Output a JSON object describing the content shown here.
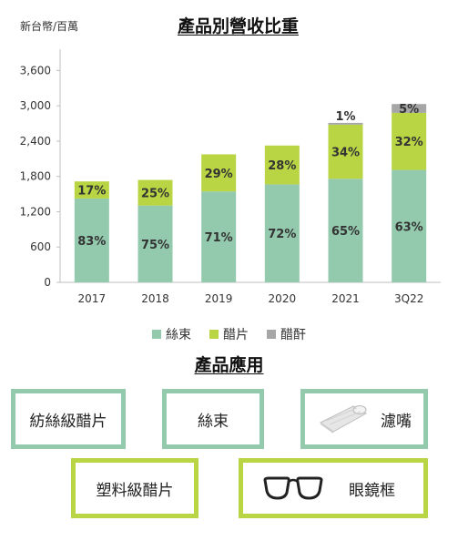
{
  "unit_label": "新台幣/百萬",
  "chart_title": "產品別營收比重",
  "chart_data": {
    "type": "bar",
    "stacked": true,
    "title": "產品別營收比重",
    "ylabel": "新台幣/百萬",
    "ylim": [
      0,
      3900
    ],
    "yticks": [
      "0",
      "600",
      "1,200",
      "1,800",
      "2,400",
      "3,000",
      "3,600"
    ],
    "ytick_values": [
      0,
      600,
      1200,
      1800,
      2400,
      3000,
      3600
    ],
    "categories": [
      "2017",
      "2018",
      "2019",
      "2020",
      "2021",
      "3Q22"
    ],
    "series": [
      {
        "name": "絲束",
        "color": "#93c9ad",
        "values": [
          1425,
          1305,
          1545,
          1665,
          1760,
          1910
        ],
        "labels": [
          "83%",
          "75%",
          "71%",
          "72%",
          "65%",
          "63%"
        ]
      },
      {
        "name": "醋片",
        "color": "#b9d544",
        "values": [
          290,
          435,
          630,
          660,
          920,
          970
        ],
        "labels": [
          "17%",
          "25%",
          "29%",
          "28%",
          "34%",
          "32%"
        ]
      },
      {
        "name": "醋酐",
        "color": "#a6a6a6",
        "values": [
          0,
          0,
          0,
          0,
          30,
          150
        ],
        "labels": [
          "",
          "",
          "",
          "",
          "1%",
          "5%"
        ]
      }
    ],
    "grid": false,
    "legend": "bottom"
  },
  "legend": [
    {
      "label": "絲束",
      "color": "#93c9ad"
    },
    {
      "label": "醋片",
      "color": "#b9d544"
    },
    {
      "label": "醋酐",
      "color": "#a6a6a6"
    }
  ],
  "applications": {
    "title": "產品應用",
    "row1": [
      "紡絲級醋片",
      "絲束",
      "濾嘴"
    ],
    "row2": [
      "塑料級醋片",
      "眼鏡框"
    ],
    "teal_color": "#93c9ad",
    "lime_color": "#b9d544"
  }
}
